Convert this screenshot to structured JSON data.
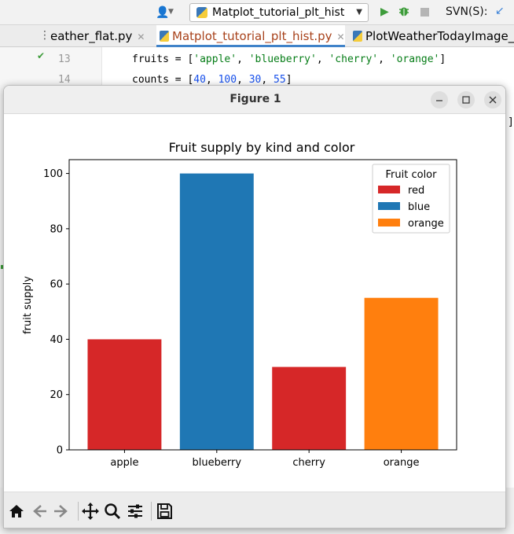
{
  "ide": {
    "run_config": "Matplot_tutorial_plt_hist",
    "svn_label": "SVN(S):",
    "tabs": [
      {
        "label": "eather_flat.py"
      },
      {
        "label": "Matplot_tutorial_plt_hist.py"
      },
      {
        "label": "PlotWeatherTodayImage_s"
      }
    ],
    "code_lines": [
      {
        "number": "13",
        "text": "fruits = ['apple', 'blueberry', 'cherry', 'orange']"
      },
      {
        "number": "14",
        "text": "counts = [40, 100, 30, 55]"
      }
    ],
    "bracket_fragment": "]"
  },
  "figure": {
    "window_title": "Figure 1",
    "icons": [
      "home-icon",
      "back-icon",
      "forward-icon",
      "pan-icon",
      "zoom-icon",
      "configure-subplots-icon",
      "save-icon"
    ]
  },
  "chart_data": {
    "type": "bar",
    "title": "Fruit supply by kind and color",
    "xlabel": "",
    "ylabel": "fruit supply",
    "ylim": [
      0,
      105
    ],
    "yticks": [
      0,
      20,
      40,
      60,
      80,
      100
    ],
    "categories": [
      "apple",
      "blueberry",
      "cherry",
      "orange"
    ],
    "values": [
      40,
      100,
      30,
      55
    ],
    "bar_colors": [
      "#d62728",
      "#1f77b4",
      "#d62728",
      "#ff7f0e"
    ],
    "legend": {
      "title": "Fruit color",
      "placement": "top-right",
      "entries": [
        {
          "label": "red",
          "color": "#d62728"
        },
        {
          "label": "blue",
          "color": "#1f77b4"
        },
        {
          "label": "orange",
          "color": "#ff7f0e"
        }
      ]
    },
    "grid": false
  }
}
